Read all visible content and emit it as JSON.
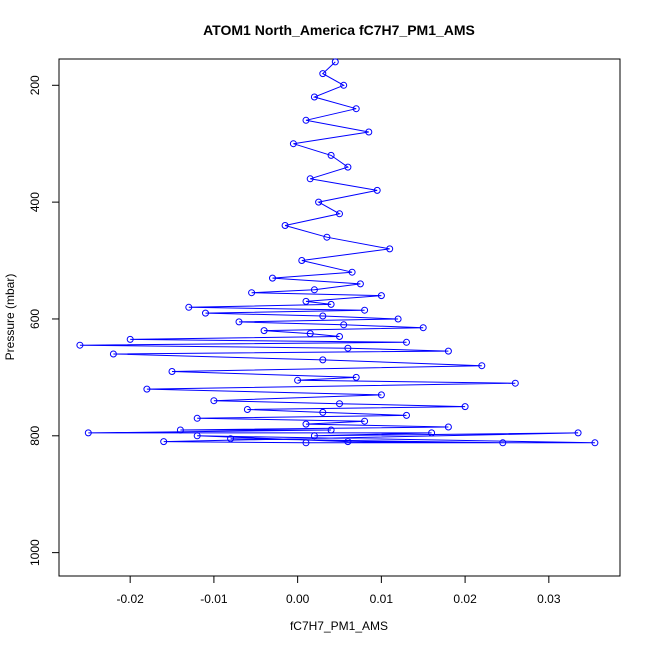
{
  "chart_data": {
    "type": "scatter",
    "title": "ATOM1 North_America fC7H7_PM1_AMS",
    "xlabel": "fC7H7_PM1_AMS",
    "ylabel": "Pressure (mbar)",
    "xlim": [
      -0.0285,
      0.0385
    ],
    "ylim": [
      1040,
      155
    ],
    "y_reversed": true,
    "x_ticks": [
      -0.02,
      -0.01,
      0.0,
      0.01,
      0.02,
      0.03
    ],
    "x_tick_labels": [
      "-0.02",
      "-0.01",
      "0.00",
      "0.01",
      "0.02",
      "0.03"
    ],
    "y_ticks": [
      200,
      400,
      600,
      800,
      1000
    ],
    "y_tick_labels": [
      "200",
      "400",
      "600",
      "800",
      "1000"
    ],
    "grid": false,
    "legend": "none",
    "marker": "open-circle",
    "connected_lines": true,
    "color": "#0000ff",
    "series": [
      {
        "x": [
          0.0045,
          0.003,
          0.0055,
          0.002,
          0.007,
          0.001,
          0.0085,
          -0.0005,
          0.004,
          0.006,
          0.0015,
          0.0095,
          0.0025,
          0.005,
          -0.0015,
          0.0035,
          0.011,
          0.0005,
          0.0065,
          -0.003,
          0.0075,
          0.002,
          -0.0055,
          0.01,
          0.001,
          0.004,
          -0.013,
          0.008,
          -0.011,
          0.003,
          0.012,
          -0.007,
          0.0055,
          0.015,
          -0.004,
          0.0015,
          0.005,
          -0.02,
          0.013,
          -0.026,
          0.006,
          0.018,
          -0.022,
          0.003,
          0.022,
          -0.015,
          0.007,
          0.0,
          0.026,
          -0.018,
          0.01,
          -0.01,
          0.005,
          0.02,
          -0.006,
          0.003,
          0.013,
          -0.012,
          0.008,
          0.001,
          0.018,
          -0.014,
          0.004,
          -0.025,
          0.016,
          0.002,
          0.0335,
          -0.016,
          0.001,
          0.0355,
          -0.012,
          0.006,
          0.0245,
          -0.008
        ],
        "y": [
          160,
          180,
          200,
          220,
          240,
          260,
          280,
          300,
          320,
          340,
          360,
          380,
          400,
          420,
          440,
          460,
          480,
          500,
          520,
          530,
          540,
          550,
          555,
          560,
          570,
          575,
          580,
          585,
          590,
          595,
          600,
          605,
          610,
          615,
          620,
          625,
          630,
          635,
          640,
          645,
          650,
          655,
          660,
          670,
          680,
          690,
          700,
          705,
          710,
          720,
          730,
          740,
          745,
          750,
          755,
          760,
          765,
          770,
          775,
          780,
          785,
          790,
          790,
          795,
          795,
          800,
          795,
          810,
          812,
          812,
          800,
          810,
          812,
          805
        ]
      }
    ]
  }
}
